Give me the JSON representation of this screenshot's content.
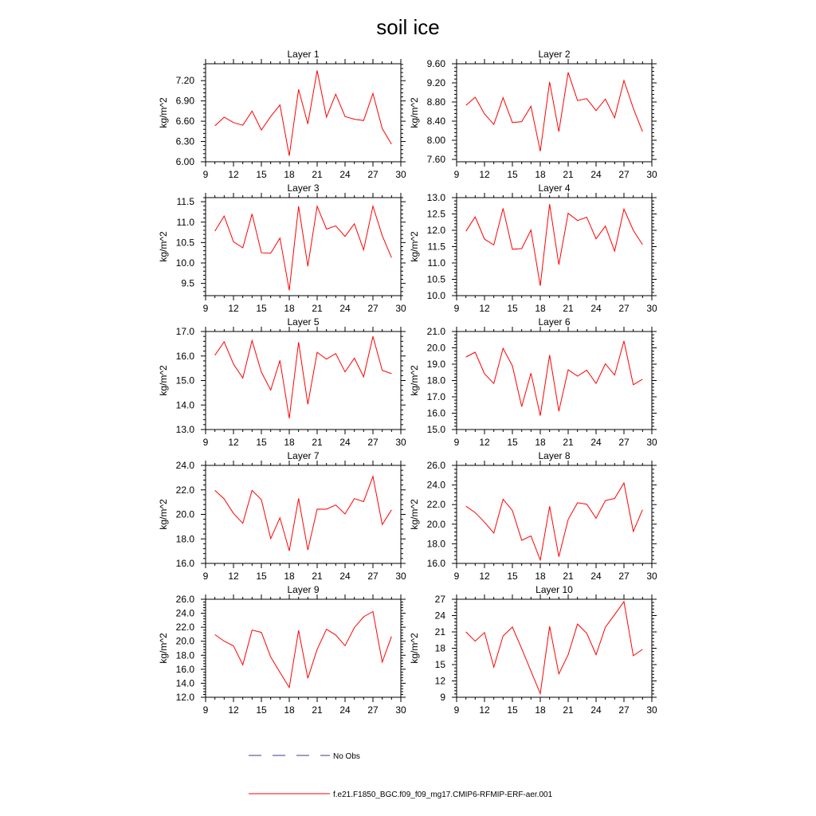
{
  "title": "soil ice",
  "legend": {
    "obs_label": "No Obs",
    "model_label": "f.e21.F1850_BGC.f09_f09_mg17.CMIP6-RFMIP-ERF-aer.001",
    "obs_color": "#3a3aa0",
    "model_color": "#ff0000"
  },
  "chart_data": [
    {
      "type": "line",
      "title": "Layer 1",
      "xlabel": "",
      "ylabel": "kg/m^2",
      "xlim": [
        9,
        30
      ],
      "ylim": [
        6.0,
        7.45
      ],
      "xticks": [
        "9",
        "12",
        "15",
        "18",
        "21",
        "24",
        "27",
        "30"
      ],
      "xtick_values": [
        9,
        12,
        15,
        18,
        21,
        24,
        27,
        30
      ],
      "yticks": [
        "6.00",
        "6.30",
        "6.60",
        "6.90",
        "7.20"
      ],
      "ytick_values": [
        6.0,
        6.3,
        6.6,
        6.9,
        7.2
      ],
      "x": [
        10,
        11,
        12,
        13,
        14,
        15,
        16,
        17,
        18,
        19,
        20,
        21,
        22,
        23,
        24,
        25,
        26,
        27,
        28,
        29
      ],
      "series": [
        {
          "color": "#ff0000",
          "values": [
            6.53,
            6.66,
            6.58,
            6.54,
            6.75,
            6.47,
            6.67,
            6.84,
            6.09,
            7.07,
            6.56,
            7.35,
            6.66,
            7.0,
            6.67,
            6.63,
            6.61,
            7.01,
            6.49,
            6.26
          ]
        }
      ]
    },
    {
      "type": "line",
      "title": "Layer 2",
      "xlabel": "",
      "ylabel": "kg/m^2",
      "xlim": [
        9,
        30
      ],
      "ylim": [
        7.55,
        9.6
      ],
      "xticks": [
        "9",
        "12",
        "15",
        "18",
        "21",
        "24",
        "27",
        "30"
      ],
      "xtick_values": [
        9,
        12,
        15,
        18,
        21,
        24,
        27,
        30
      ],
      "yticks": [
        "7.60",
        "8.00",
        "8.40",
        "8.80",
        "9.20",
        "9.60"
      ],
      "ytick_values": [
        7.6,
        8.0,
        8.4,
        8.8,
        9.2,
        9.6
      ],
      "x": [
        10,
        11,
        12,
        13,
        14,
        15,
        16,
        17,
        18,
        19,
        20,
        21,
        22,
        23,
        24,
        25,
        26,
        27,
        28,
        29
      ],
      "series": [
        {
          "color": "#ff0000",
          "values": [
            8.73,
            8.9,
            8.55,
            8.33,
            8.89,
            8.37,
            8.39,
            8.71,
            7.77,
            9.22,
            8.18,
            9.42,
            8.83,
            8.87,
            8.62,
            8.86,
            8.47,
            9.25,
            8.67,
            8.18
          ]
        }
      ]
    },
    {
      "type": "line",
      "title": "Layer 3",
      "xlabel": "",
      "ylabel": "kg/m^2",
      "xlim": [
        9,
        30
      ],
      "ylim": [
        9.2,
        11.6
      ],
      "xticks": [
        "9",
        "12",
        "15",
        "18",
        "21",
        "24",
        "27",
        "30"
      ],
      "xtick_values": [
        9,
        12,
        15,
        18,
        21,
        24,
        27,
        30
      ],
      "yticks": [
        "9.5",
        "10.0",
        "10.5",
        "11.0",
        "11.5"
      ],
      "ytick_values": [
        9.5,
        10.0,
        10.5,
        11.0,
        11.5
      ],
      "x": [
        10,
        11,
        12,
        13,
        14,
        15,
        16,
        17,
        18,
        19,
        20,
        21,
        22,
        23,
        24,
        25,
        26,
        27,
        28,
        29
      ],
      "series": [
        {
          "color": "#ff0000",
          "values": [
            10.78,
            11.15,
            10.52,
            10.37,
            11.2,
            10.25,
            10.24,
            10.61,
            9.33,
            11.39,
            9.92,
            11.39,
            10.83,
            10.91,
            10.65,
            10.96,
            10.32,
            11.39,
            10.67,
            10.13
          ]
        }
      ]
    },
    {
      "type": "line",
      "title": "Layer 4",
      "xlabel": "",
      "ylabel": "kg/m^2",
      "xlim": [
        9,
        30
      ],
      "ylim": [
        10.0,
        13.0
      ],
      "xticks": [
        "9",
        "12",
        "15",
        "18",
        "21",
        "24",
        "27",
        "30"
      ],
      "xtick_values": [
        9,
        12,
        15,
        18,
        21,
        24,
        27,
        30
      ],
      "yticks": [
        "10.0",
        "10.5",
        "11.0",
        "11.5",
        "12.0",
        "12.5",
        "13.0"
      ],
      "ytick_values": [
        10.0,
        10.5,
        11.0,
        11.5,
        12.0,
        12.5,
        13.0
      ],
      "x": [
        10,
        11,
        12,
        13,
        14,
        15,
        16,
        17,
        18,
        19,
        20,
        21,
        22,
        23,
        24,
        25,
        26,
        27,
        28,
        29
      ],
      "series": [
        {
          "color": "#ff0000",
          "values": [
            11.97,
            12.41,
            11.73,
            11.55,
            12.67,
            11.42,
            11.44,
            12.01,
            10.3,
            12.8,
            10.95,
            12.52,
            12.3,
            12.4,
            11.74,
            12.13,
            11.36,
            12.65,
            12.0,
            11.56
          ]
        }
      ]
    },
    {
      "type": "line",
      "title": "Layer 5",
      "xlabel": "",
      "ylabel": "kg/m^2",
      "xlim": [
        9,
        30
      ],
      "ylim": [
        13.0,
        17.0
      ],
      "xticks": [
        "9",
        "12",
        "15",
        "18",
        "21",
        "24",
        "27",
        "30"
      ],
      "xtick_values": [
        9,
        12,
        15,
        18,
        21,
        24,
        27,
        30
      ],
      "yticks": [
        "13.0",
        "14.0",
        "15.0",
        "16.0",
        "17.0"
      ],
      "ytick_values": [
        13.0,
        14.0,
        15.0,
        16.0,
        17.0
      ],
      "x": [
        10,
        11,
        12,
        13,
        14,
        15,
        16,
        17,
        18,
        19,
        20,
        21,
        22,
        23,
        24,
        25,
        26,
        27,
        28,
        29
      ],
      "series": [
        {
          "color": "#ff0000",
          "values": [
            16.03,
            16.58,
            15.67,
            15.1,
            16.63,
            15.34,
            14.61,
            15.82,
            13.46,
            16.56,
            14.03,
            16.15,
            15.87,
            16.1,
            15.35,
            15.91,
            15.15,
            16.8,
            15.41,
            15.28
          ]
        }
      ]
    },
    {
      "type": "line",
      "title": "Layer 6",
      "xlabel": "",
      "ylabel": "kg/m^2",
      "xlim": [
        9,
        30
      ],
      "ylim": [
        15.0,
        21.0
      ],
      "xticks": [
        "9",
        "12",
        "15",
        "18",
        "21",
        "24",
        "27",
        "30"
      ],
      "xtick_values": [
        9,
        12,
        15,
        18,
        21,
        24,
        27,
        30
      ],
      "yticks": [
        "15.0",
        "16.0",
        "17.0",
        "18.0",
        "19.0",
        "20.0",
        "21.0"
      ],
      "ytick_values": [
        15.0,
        16.0,
        17.0,
        18.0,
        19.0,
        20.0,
        21.0
      ],
      "x": [
        10,
        11,
        12,
        13,
        14,
        15,
        16,
        17,
        18,
        19,
        20,
        21,
        22,
        23,
        24,
        25,
        26,
        27,
        28,
        29
      ],
      "series": [
        {
          "color": "#ff0000",
          "values": [
            19.44,
            19.73,
            18.41,
            17.82,
            19.97,
            18.9,
            16.4,
            18.45,
            15.85,
            19.56,
            16.12,
            18.66,
            18.27,
            18.63,
            17.82,
            19.02,
            18.33,
            20.42,
            17.74,
            18.08
          ]
        }
      ]
    },
    {
      "type": "line",
      "title": "Layer 7",
      "xlabel": "",
      "ylabel": "kg/m^2",
      "xlim": [
        9,
        30
      ],
      "ylim": [
        16.0,
        24.0
      ],
      "xticks": [
        "9",
        "12",
        "15",
        "18",
        "21",
        "24",
        "27",
        "30"
      ],
      "xtick_values": [
        9,
        12,
        15,
        18,
        21,
        24,
        27,
        30
      ],
      "yticks": [
        "16.0",
        "18.0",
        "20.0",
        "22.0",
        "24.0"
      ],
      "ytick_values": [
        16.0,
        18.0,
        20.0,
        22.0,
        24.0
      ],
      "x": [
        10,
        11,
        12,
        13,
        14,
        15,
        16,
        17,
        18,
        19,
        20,
        21,
        22,
        23,
        24,
        25,
        26,
        27,
        28,
        29
      ],
      "series": [
        {
          "color": "#ff0000",
          "values": [
            21.96,
            21.26,
            20.08,
            19.27,
            21.96,
            21.2,
            18.02,
            19.72,
            17.03,
            21.3,
            17.09,
            20.43,
            20.42,
            20.77,
            20.03,
            21.29,
            21.04,
            23.1,
            19.17,
            20.37
          ]
        }
      ]
    },
    {
      "type": "line",
      "title": "Layer 8",
      "xlabel": "",
      "ylabel": "kg/m^2",
      "xlim": [
        9,
        30
      ],
      "ylim": [
        16.0,
        26.0
      ],
      "xticks": [
        "9",
        "12",
        "15",
        "18",
        "21",
        "24",
        "27",
        "30"
      ],
      "xtick_values": [
        9,
        12,
        15,
        18,
        21,
        24,
        27,
        30
      ],
      "yticks": [
        "16.0",
        "18.0",
        "20.0",
        "22.0",
        "24.0",
        "26.0"
      ],
      "ytick_values": [
        16.0,
        18.0,
        20.0,
        22.0,
        24.0,
        26.0
      ],
      "x": [
        10,
        11,
        12,
        13,
        14,
        15,
        16,
        17,
        18,
        19,
        20,
        21,
        22,
        23,
        24,
        25,
        26,
        27,
        28,
        29
      ],
      "series": [
        {
          "color": "#ff0000",
          "values": [
            21.84,
            21.19,
            20.2,
            19.09,
            22.55,
            21.39,
            18.36,
            18.8,
            16.34,
            21.83,
            16.68,
            20.48,
            22.19,
            22.04,
            20.61,
            22.41,
            22.63,
            24.2,
            19.26,
            21.47
          ]
        }
      ]
    },
    {
      "type": "line",
      "title": "Layer 9",
      "xlabel": "",
      "ylabel": "kg/m^2",
      "xlim": [
        9,
        30
      ],
      "ylim": [
        12.0,
        26.0
      ],
      "xticks": [
        "9",
        "12",
        "15",
        "18",
        "21",
        "24",
        "27",
        "30"
      ],
      "xtick_values": [
        9,
        12,
        15,
        18,
        21,
        24,
        27,
        30
      ],
      "yticks": [
        "12.0",
        "14.0",
        "16.0",
        "18.0",
        "20.0",
        "22.0",
        "24.0",
        "26.0"
      ],
      "ytick_values": [
        12.0,
        14.0,
        16.0,
        18.0,
        20.0,
        22.0,
        24.0,
        26.0
      ],
      "x": [
        10,
        11,
        12,
        13,
        14,
        15,
        16,
        17,
        18,
        19,
        20,
        21,
        22,
        23,
        24,
        25,
        26,
        27,
        28,
        29
      ],
      "series": [
        {
          "color": "#ff0000",
          "values": [
            20.95,
            20.01,
            19.34,
            16.63,
            21.6,
            21.26,
            17.76,
            15.56,
            13.4,
            21.55,
            14.71,
            18.85,
            21.71,
            20.9,
            19.36,
            21.95,
            23.5,
            24.24,
            17.02,
            20.69
          ]
        }
      ]
    },
    {
      "type": "line",
      "title": "Layer 10",
      "xlabel": "",
      "ylabel": "kg/m^2",
      "xlim": [
        9,
        30
      ],
      "ylim": [
        9,
        27
      ],
      "xticks": [
        "9",
        "12",
        "15",
        "18",
        "21",
        "24",
        "27",
        "30"
      ],
      "xtick_values": [
        9,
        12,
        15,
        18,
        21,
        24,
        27,
        30
      ],
      "yticks": [
        "9",
        "12",
        "15",
        "18",
        "21",
        "24",
        "27"
      ],
      "ytick_values": [
        9,
        12,
        15,
        18,
        21,
        24,
        27
      ],
      "x": [
        10,
        11,
        12,
        13,
        14,
        15,
        16,
        17,
        18,
        19,
        20,
        21,
        22,
        23,
        24,
        25,
        26,
        27,
        28,
        29
      ],
      "series": [
        {
          "color": "#ff0000",
          "values": [
            21.0,
            19.3,
            20.88,
            14.53,
            20.26,
            21.9,
            17.91,
            13.8,
            9.67,
            22.02,
            13.29,
            16.82,
            22.45,
            20.75,
            16.81,
            21.88,
            24.18,
            26.57,
            16.63,
            17.8
          ]
        }
      ]
    }
  ]
}
